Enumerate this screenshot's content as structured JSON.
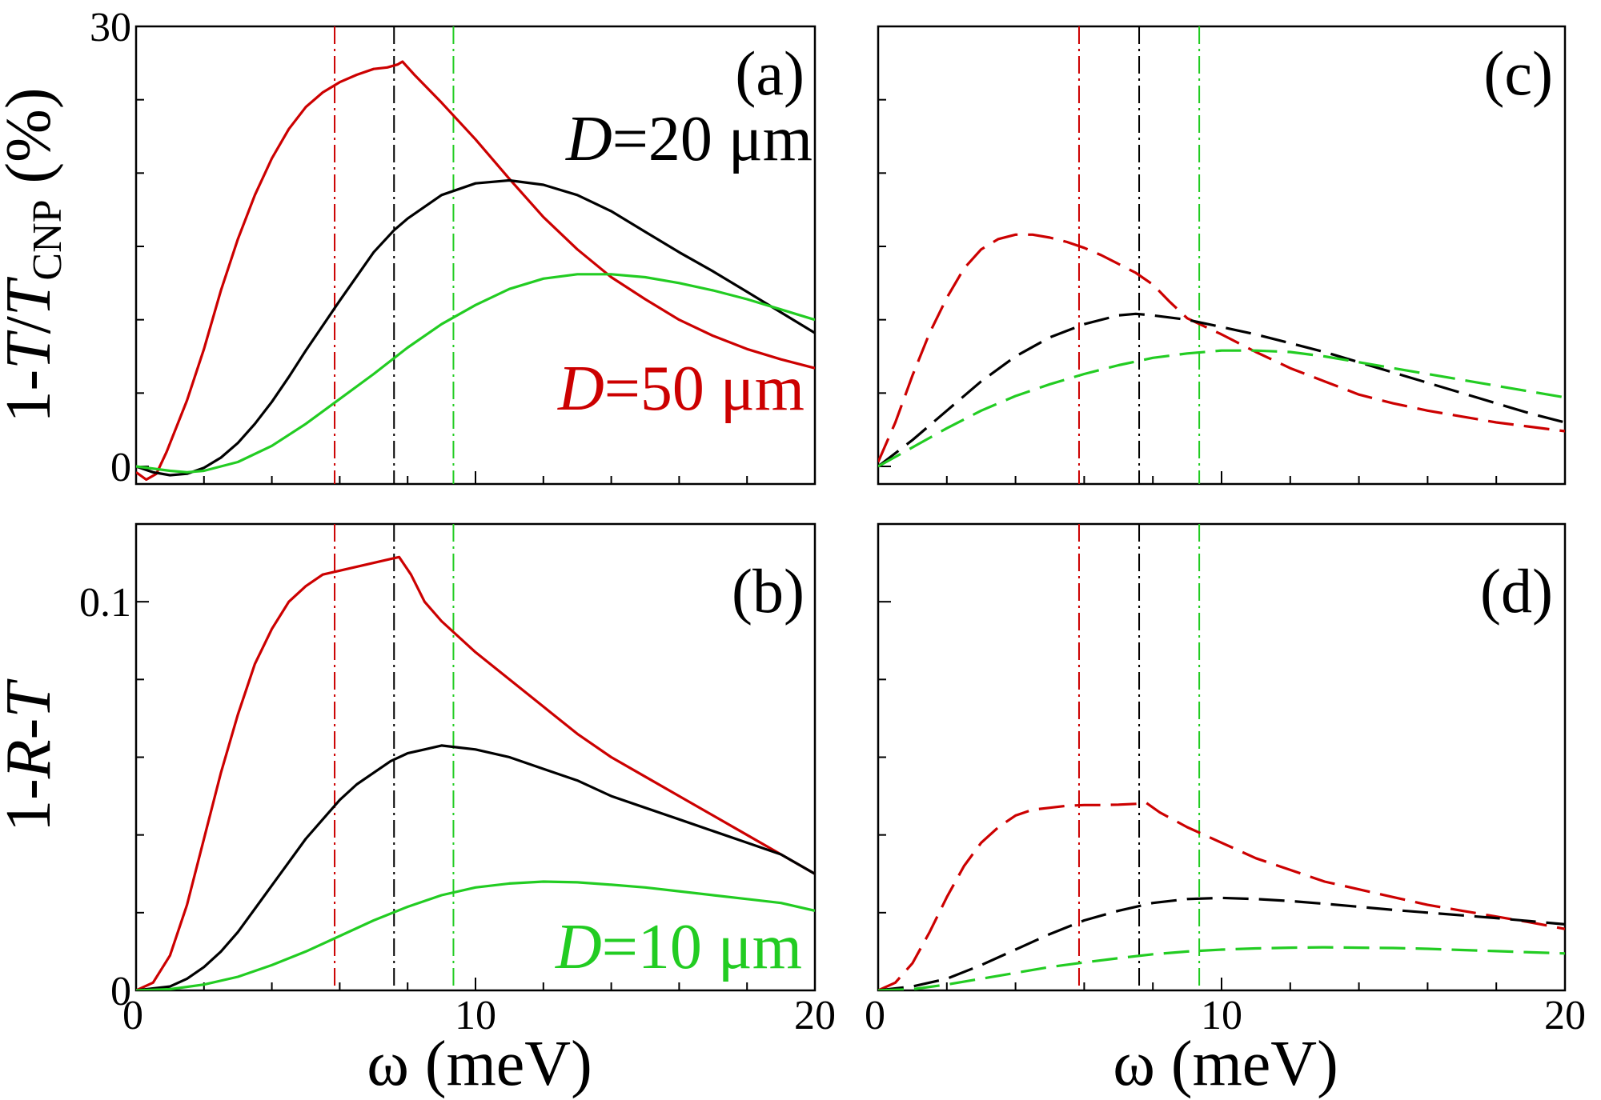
{
  "chart_data": [
    {
      "panel": "(a)",
      "type": "line",
      "ylabel_parts": [
        "1-",
        "T",
        "/",
        "T",
        "CNP",
        " (%)"
      ],
      "xlim": [
        0,
        20
      ],
      "ylim": [
        -1.2,
        30
      ],
      "yticks": [
        {
          "value": 0,
          "label": "0"
        },
        {
          "value": 30,
          "label": "30"
        }
      ],
      "x_ticklabels": [],
      "annotations": [
        {
          "italic": "D",
          "text": "=20 μm",
          "color": "#000000"
        },
        {
          "italic": "D",
          "text": "=50 μm",
          "color": "#cc0000"
        }
      ],
      "vlines": [
        {
          "x": 5.85,
          "color": "#cc0000"
        },
        {
          "x": 7.6,
          "color": "#000000"
        },
        {
          "x": 9.35,
          "color": "#22cc22"
        }
      ],
      "series": [
        {
          "name": "D=50 μm",
          "color": "#cc0000",
          "style": "solid",
          "x": [
            0,
            0.3,
            0.6,
            0.9,
            1.5,
            2,
            2.5,
            3,
            3.5,
            4,
            4.5,
            5,
            5.5,
            6,
            6.5,
            7,
            7.4,
            7.7,
            7.85,
            8.2,
            9,
            10,
            11,
            12,
            13,
            14,
            15,
            16,
            17,
            18,
            19,
            20
          ],
          "y": [
            -0.4,
            -0.9,
            -0.5,
            1.0,
            4.5,
            8.0,
            12.0,
            15.5,
            18.5,
            21.0,
            23.0,
            24.5,
            25.5,
            26.2,
            26.7,
            27.1,
            27.2,
            27.4,
            27.6,
            26.7,
            24.8,
            22.3,
            19.6,
            17.0,
            14.8,
            12.9,
            11.4,
            10.0,
            8.9,
            8.0,
            7.3,
            6.7
          ]
        },
        {
          "name": "D=20 μm",
          "color": "#000000",
          "style": "solid",
          "x": [
            0,
            0.5,
            1,
            1.5,
            2,
            2.5,
            3,
            3.5,
            4,
            4.5,
            5,
            6,
            7,
            7.6,
            8,
            9,
            10,
            11,
            12,
            13,
            14,
            15,
            16,
            17,
            18,
            19,
            20
          ],
          "y": [
            0,
            -0.4,
            -0.6,
            -0.5,
            -0.1,
            0.6,
            1.6,
            2.9,
            4.4,
            6.1,
            7.9,
            11.3,
            14.6,
            16.1,
            16.9,
            18.5,
            19.3,
            19.5,
            19.2,
            18.5,
            17.4,
            16.0,
            14.6,
            13.3,
            11.9,
            10.5,
            9.1
          ]
        },
        {
          "name": "D=10 μm",
          "color": "#22cc22",
          "style": "solid",
          "x": [
            0,
            1,
            1.5,
            2,
            3,
            4,
            5,
            6,
            7,
            8,
            9,
            10,
            11,
            12,
            13,
            14,
            15,
            16,
            17,
            18,
            19,
            20
          ],
          "y": [
            0,
            -0.3,
            -0.4,
            -0.3,
            0.3,
            1.4,
            2.9,
            4.6,
            6.3,
            8.1,
            9.7,
            11.0,
            12.1,
            12.8,
            13.1,
            13.1,
            12.9,
            12.5,
            12.0,
            11.4,
            10.7,
            10.0
          ]
        }
      ]
    },
    {
      "panel": "(b)",
      "type": "line",
      "ylabel_parts": [
        "1-",
        "R",
        "-",
        "T"
      ],
      "xlim": [
        0,
        20
      ],
      "ylim": [
        0,
        0.12
      ],
      "yticks": [
        {
          "value": 0,
          "label": "0"
        },
        {
          "value": 0.1,
          "label": "0.1"
        }
      ],
      "x_ticklabels": [
        {
          "value": 0,
          "label": "0"
        },
        {
          "value": 10,
          "label": "10"
        },
        {
          "value": 20,
          "label": "20"
        }
      ],
      "xlabel": "ω (meV)",
      "annotations": [
        {
          "italic": "D",
          "text": "=10 μm",
          "color": "#22cc22"
        }
      ],
      "vlines": [
        {
          "x": 5.85,
          "color": "#cc0000"
        },
        {
          "x": 7.6,
          "color": "#000000"
        },
        {
          "x": 9.35,
          "color": "#22cc22"
        }
      ],
      "series": [
        {
          "name": "D=50 μm",
          "color": "#cc0000",
          "style": "solid",
          "x": [
            0,
            0.5,
            1,
            1.5,
            2,
            2.5,
            3,
            3.5,
            4,
            4.5,
            5,
            5.5,
            6,
            6.5,
            7,
            7.5,
            7.75,
            8.1,
            8.5,
            9,
            10,
            11,
            12,
            13,
            14,
            15,
            16,
            17,
            18,
            19,
            20
          ],
          "y": [
            0,
            0.002,
            0.009,
            0.022,
            0.039,
            0.056,
            0.071,
            0.084,
            0.093,
            0.1,
            0.104,
            0.107,
            0.108,
            0.109,
            0.11,
            0.111,
            0.1115,
            0.107,
            0.1,
            0.095,
            0.087,
            0.08,
            0.073,
            0.066,
            0.06,
            0.055,
            0.05,
            0.045,
            0.04,
            0.035,
            0.03
          ]
        },
        {
          "name": "D=20 μm",
          "color": "#000000",
          "style": "solid",
          "x": [
            0,
            1,
            1.5,
            2,
            2.5,
            3,
            3.5,
            4,
            4.5,
            5,
            5.5,
            6,
            6.5,
            7,
            7.5,
            8,
            8.5,
            9,
            9.5,
            10,
            11,
            12,
            13,
            14,
            15,
            16,
            17,
            18,
            19,
            20
          ],
          "y": [
            0,
            0.001,
            0.003,
            0.006,
            0.01,
            0.015,
            0.021,
            0.027,
            0.033,
            0.039,
            0.044,
            0.049,
            0.053,
            0.056,
            0.059,
            0.061,
            0.062,
            0.063,
            0.0625,
            0.062,
            0.06,
            0.057,
            0.054,
            0.05,
            0.047,
            0.044,
            0.041,
            0.038,
            0.035,
            0.03
          ]
        },
        {
          "name": "D=10 μm",
          "color": "#22cc22",
          "style": "solid",
          "x": [
            0,
            1,
            2,
            3,
            4,
            5,
            6,
            7,
            8,
            9,
            10,
            11,
            12,
            13,
            14,
            15,
            16,
            17,
            18,
            19,
            20
          ],
          "y": [
            0,
            0.0003,
            0.0015,
            0.0035,
            0.0065,
            0.01,
            0.014,
            0.018,
            0.0215,
            0.0245,
            0.0265,
            0.0275,
            0.028,
            0.0278,
            0.0272,
            0.0265,
            0.0255,
            0.0245,
            0.0235,
            0.0225,
            0.0205
          ]
        }
      ]
    },
    {
      "panel": "(c)",
      "type": "line",
      "xlim": [
        0,
        20
      ],
      "ylim": [
        -1.2,
        30
      ],
      "yticks": [
        {
          "value": 0,
          "label": ""
        },
        {
          "value": 30,
          "label": ""
        }
      ],
      "x_ticklabels": [],
      "annotations": [],
      "vlines": [
        {
          "x": 5.85,
          "color": "#cc0000"
        },
        {
          "x": 7.6,
          "color": "#000000"
        },
        {
          "x": 9.35,
          "color": "#22cc22"
        }
      ],
      "series": [
        {
          "name": "D=50 μm",
          "color": "#cc0000",
          "style": "dashed",
          "x": [
            0,
            0.5,
            1,
            1.5,
            2,
            2.5,
            3,
            3.5,
            4,
            4.5,
            5,
            5.5,
            6,
            6.5,
            7,
            7.5,
            8,
            8.5,
            9,
            10,
            11,
            12,
            13,
            14,
            15,
            16,
            17,
            18,
            19,
            20
          ],
          "y": [
            0.3,
            3.0,
            6.2,
            9.1,
            11.5,
            13.5,
            14.8,
            15.5,
            15.8,
            15.8,
            15.6,
            15.3,
            14.9,
            14.4,
            13.8,
            13.2,
            12.4,
            11.2,
            10.1,
            9.0,
            7.8,
            6.7,
            5.8,
            4.9,
            4.3,
            3.8,
            3.4,
            3.0,
            2.7,
            2.4
          ]
        },
        {
          "name": "D=20 μm",
          "color": "#000000",
          "style": "dashed",
          "x": [
            0,
            1,
            2,
            3,
            4,
            5,
            6,
            7,
            7.5,
            8,
            9,
            10,
            11,
            12,
            13,
            14,
            15,
            16,
            17,
            18,
            19,
            20
          ],
          "y": [
            0,
            1.8,
            3.8,
            5.8,
            7.5,
            8.8,
            9.7,
            10.3,
            10.4,
            10.3,
            10.0,
            9.5,
            9.0,
            8.4,
            7.8,
            7.1,
            6.4,
            5.7,
            5.0,
            4.3,
            3.6,
            3.0
          ]
        },
        {
          "name": "D=10 μm",
          "color": "#22cc22",
          "style": "dashed",
          "x": [
            0,
            1,
            2,
            3,
            4,
            5,
            6,
            7,
            8,
            9,
            10,
            11,
            12,
            13,
            14,
            15,
            16,
            17,
            18,
            19,
            20
          ],
          "y": [
            0,
            1.3,
            2.6,
            3.8,
            4.8,
            5.6,
            6.3,
            6.9,
            7.4,
            7.7,
            7.9,
            7.9,
            7.8,
            7.5,
            7.1,
            6.7,
            6.3,
            5.9,
            5.5,
            5.1,
            4.7
          ]
        }
      ]
    },
    {
      "panel": "(d)",
      "type": "line",
      "xlim": [
        0,
        20
      ],
      "ylim": [
        0,
        0.12
      ],
      "yticks": [
        {
          "value": 0,
          "label": ""
        },
        {
          "value": 0.1,
          "label": ""
        }
      ],
      "x_ticklabels": [
        {
          "value": 0,
          "label": "0"
        },
        {
          "value": 10,
          "label": "10"
        },
        {
          "value": 20,
          "label": "20"
        }
      ],
      "xlabel": "ω (meV)",
      "annotations": [],
      "vlines": [
        {
          "x": 5.85,
          "color": "#cc0000"
        },
        {
          "x": 7.6,
          "color": "#000000"
        },
        {
          "x": 9.35,
          "color": "#22cc22"
        }
      ],
      "series": [
        {
          "name": "D=50 μm",
          "color": "#cc0000",
          "style": "dashed",
          "x": [
            0,
            0.5,
            1,
            1.5,
            2,
            2.5,
            3,
            3.5,
            4,
            4.5,
            5,
            5.5,
            6,
            6.5,
            7,
            7.5,
            7.8,
            8.2,
            9,
            10,
            11,
            12,
            13,
            14,
            15,
            16,
            17,
            18,
            19,
            20
          ],
          "y": [
            0,
            0.002,
            0.007,
            0.015,
            0.024,
            0.032,
            0.038,
            0.042,
            0.045,
            0.0465,
            0.047,
            0.0475,
            0.0477,
            0.0477,
            0.0478,
            0.048,
            0.0483,
            0.0458,
            0.042,
            0.038,
            0.034,
            0.031,
            0.028,
            0.026,
            0.024,
            0.022,
            0.0205,
            0.019,
            0.0175,
            0.0158
          ]
        },
        {
          "name": "D=20 μm",
          "color": "#000000",
          "style": "dashed",
          "x": [
            0,
            1,
            2,
            3,
            4,
            5,
            6,
            7,
            8,
            9,
            10,
            11,
            12,
            13,
            14,
            15,
            16,
            17,
            18,
            19,
            20
          ],
          "y": [
            0,
            0.001,
            0.003,
            0.0065,
            0.0105,
            0.0145,
            0.018,
            0.0205,
            0.0225,
            0.0235,
            0.0238,
            0.0235,
            0.023,
            0.0223,
            0.0215,
            0.0207,
            0.02,
            0.0193,
            0.0186,
            0.0178,
            0.017
          ]
        },
        {
          "name": "D=10 μm",
          "color": "#22cc22",
          "style": "dashed",
          "x": [
            0,
            1,
            2,
            3,
            4,
            5,
            6,
            7,
            8,
            9,
            10,
            11,
            12,
            13,
            14,
            15,
            16,
            17,
            18,
            19,
            20
          ],
          "y": [
            0,
            0.0003,
            0.0015,
            0.003,
            0.0045,
            0.006,
            0.0072,
            0.0083,
            0.0093,
            0.01,
            0.0105,
            0.0108,
            0.011,
            0.0111,
            0.011,
            0.0109,
            0.0107,
            0.0104,
            0.0101,
            0.0098,
            0.0095
          ]
        }
      ]
    }
  ]
}
